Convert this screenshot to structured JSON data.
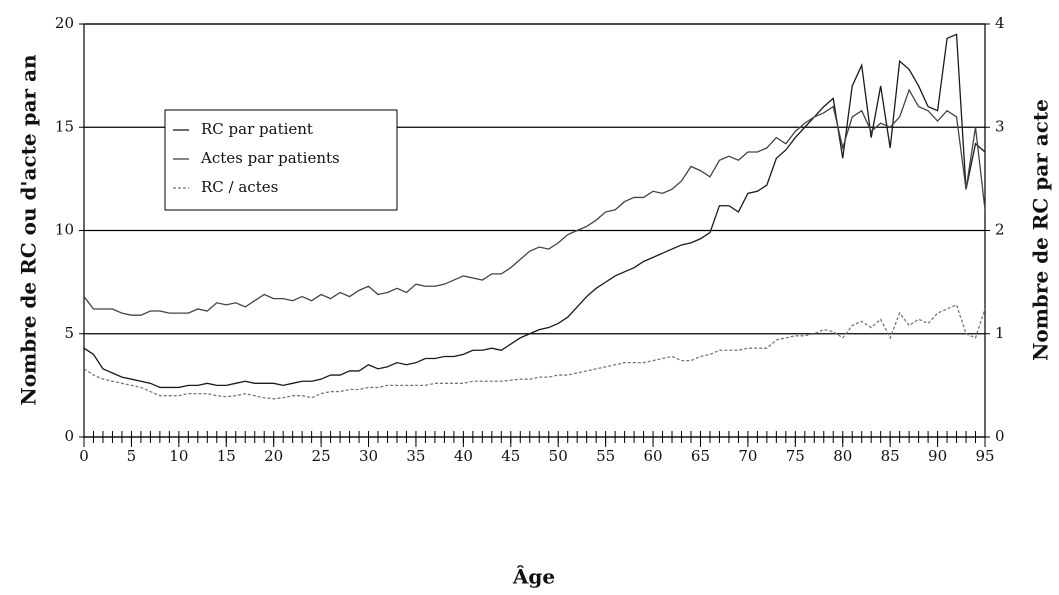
{
  "chart_data": {
    "type": "line",
    "x_label": "Âge",
    "y_label": "Nombre de RC ou d'acte par an",
    "y2_label": "Nombre de RC par acte",
    "x": [
      0,
      1,
      2,
      3,
      4,
      5,
      6,
      7,
      8,
      9,
      10,
      11,
      12,
      13,
      14,
      15,
      16,
      17,
      18,
      19,
      20,
      21,
      22,
      23,
      24,
      25,
      26,
      27,
      28,
      29,
      30,
      31,
      32,
      33,
      34,
      35,
      36,
      37,
      38,
      39,
      40,
      41,
      42,
      43,
      44,
      45,
      46,
      47,
      48,
      49,
      50,
      51,
      52,
      53,
      54,
      55,
      56,
      57,
      58,
      59,
      60,
      61,
      62,
      63,
      64,
      65,
      66,
      67,
      68,
      69,
      70,
      71,
      72,
      73,
      74,
      75,
      76,
      77,
      78,
      79,
      80,
      81,
      82,
      83,
      84,
      85,
      86,
      87,
      88,
      89,
      90,
      91,
      92,
      93,
      94,
      95
    ],
    "xlim": [
      0,
      95
    ],
    "xticks": [
      0,
      5,
      10,
      15,
      20,
      25,
      30,
      35,
      40,
      45,
      50,
      55,
      60,
      65,
      70,
      75,
      80,
      85,
      90,
      95
    ],
    "ylim": [
      0,
      20
    ],
    "yticks": [
      0,
      5,
      10,
      15,
      20
    ],
    "y2lim": [
      0,
      4
    ],
    "y2ticks": [
      0,
      1,
      2,
      3,
      4
    ],
    "grid": true,
    "legend": "upper left",
    "series": [
      {
        "name": "RC par patient",
        "color": "#1a1a1a",
        "values": [
          4.3,
          4.0,
          3.3,
          3.1,
          2.9,
          2.8,
          2.7,
          2.6,
          2.4,
          2.4,
          2.4,
          2.5,
          2.5,
          2.6,
          2.5,
          2.5,
          2.6,
          2.7,
          2.6,
          2.6,
          2.6,
          2.5,
          2.6,
          2.7,
          2.7,
          2.8,
          3.0,
          3.0,
          3.2,
          3.2,
          3.5,
          3.3,
          3.4,
          3.6,
          3.5,
          3.6,
          3.8,
          3.8,
          3.9,
          3.9,
          4.0,
          4.2,
          4.2,
          4.3,
          4.2,
          4.5,
          4.8,
          5.0,
          5.2,
          5.3,
          5.5,
          5.8,
          6.3,
          6.8,
          7.2,
          7.5,
          7.8,
          8.0,
          8.2,
          8.5,
          8.7,
          8.9,
          9.1,
          9.3,
          9.4,
          9.6,
          9.9,
          11.2,
          11.2,
          10.9,
          11.8,
          11.9,
          12.2,
          13.5,
          13.9,
          14.5,
          15.0,
          15.5,
          16.0,
          16.4,
          13.5,
          17.0,
          18.0,
          14.5,
          17.0,
          14.0,
          18.2,
          17.8,
          17.0,
          16.0,
          15.8,
          19.3,
          19.5,
          12.0,
          14.2,
          13.8
        ]
      },
      {
        "name": "Actes par patients",
        "color": "#444444",
        "values": [
          6.8,
          6.2,
          6.2,
          6.2,
          6.0,
          5.9,
          5.9,
          6.1,
          6.1,
          6.0,
          6.0,
          6.0,
          6.2,
          6.1,
          6.5,
          6.4,
          6.5,
          6.3,
          6.6,
          6.9,
          6.7,
          6.7,
          6.6,
          6.8,
          6.6,
          6.9,
          6.7,
          7.0,
          6.8,
          7.1,
          7.3,
          6.9,
          7.0,
          7.2,
          7.0,
          7.4,
          7.3,
          7.3,
          7.4,
          7.6,
          7.8,
          7.7,
          7.6,
          7.9,
          7.9,
          8.2,
          8.6,
          9.0,
          9.2,
          9.1,
          9.4,
          9.8,
          10.0,
          10.2,
          10.5,
          10.9,
          11.0,
          11.4,
          11.6,
          11.6,
          11.9,
          11.8,
          12.0,
          12.4,
          13.1,
          12.9,
          12.6,
          13.4,
          13.6,
          13.4,
          13.8,
          13.8,
          14.0,
          14.5,
          14.2,
          14.8,
          15.2,
          15.5,
          15.7,
          16.0,
          14.0,
          15.5,
          15.8,
          14.8,
          15.2,
          15.0,
          15.5,
          16.8,
          16.0,
          15.8,
          15.3,
          15.8,
          15.5,
          12.0,
          15.0,
          11.0
        ]
      },
      {
        "name": "RC / actes",
        "color": "#777777",
        "axis": "y2",
        "values": [
          0.66,
          0.6,
          0.56,
          0.54,
          0.52,
          0.5,
          0.48,
          0.44,
          0.4,
          0.4,
          0.4,
          0.42,
          0.42,
          0.42,
          0.4,
          0.39,
          0.4,
          0.42,
          0.4,
          0.38,
          0.37,
          0.38,
          0.4,
          0.4,
          0.38,
          0.42,
          0.44,
          0.44,
          0.46,
          0.46,
          0.48,
          0.48,
          0.5,
          0.5,
          0.5,
          0.5,
          0.5,
          0.52,
          0.52,
          0.52,
          0.52,
          0.54,
          0.54,
          0.54,
          0.54,
          0.55,
          0.56,
          0.56,
          0.58,
          0.58,
          0.6,
          0.6,
          0.62,
          0.64,
          0.66,
          0.68,
          0.7,
          0.72,
          0.72,
          0.72,
          0.74,
          0.76,
          0.78,
          0.74,
          0.74,
          0.78,
          0.8,
          0.84,
          0.84,
          0.84,
          0.86,
          0.86,
          0.86,
          0.94,
          0.96,
          0.98,
          0.98,
          1.0,
          1.04,
          1.02,
          0.96,
          1.08,
          1.12,
          1.06,
          1.14,
          0.96,
          1.2,
          1.08,
          1.14,
          1.1,
          1.2,
          1.24,
          1.28,
          1.0,
          0.96,
          1.24
        ]
      }
    ]
  }
}
